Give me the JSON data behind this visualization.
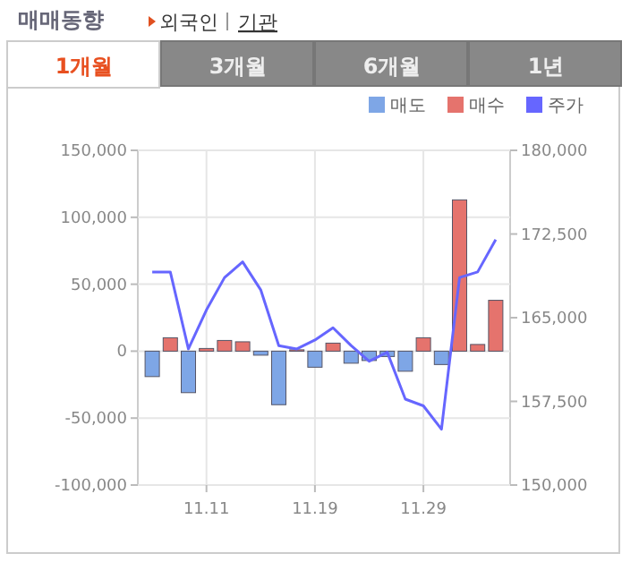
{
  "chart_data": {
    "type": "bar",
    "title": "매매동향",
    "annotations": [
      "외국인",
      "기관",
      "1개월",
      "3개월",
      "6개월",
      "1년"
    ],
    "categories": [
      null,
      null,
      null,
      "11.11",
      null,
      null,
      null,
      null,
      null,
      "11.19",
      null,
      null,
      null,
      null,
      null,
      "11.29",
      null,
      null,
      null,
      null
    ],
    "series": [
      {
        "name": "매도",
        "color": "#7ea6e6",
        "values": [
          -19000,
          0,
          -31000,
          0,
          0,
          0,
          -3000,
          -40000,
          0,
          -12000,
          0,
          -9000,
          -7000,
          -4000,
          -15000,
          0,
          -10000,
          0,
          0,
          0
        ]
      },
      {
        "name": "매수",
        "color": "#e5736d",
        "values": [
          0,
          10000,
          0,
          2000,
          8000,
          7000,
          0,
          0,
          1000,
          0,
          6000,
          0,
          0,
          0,
          0,
          10000,
          0,
          113000,
          5000,
          38000
        ]
      },
      {
        "name": "주가",
        "type": "line",
        "axis": "y2",
        "color": "#6666ff",
        "values": [
          169100,
          169100,
          162200,
          165700,
          168600,
          170000,
          167500,
          162500,
          162200,
          163000,
          164100,
          162500,
          161100,
          161900,
          157700,
          157100,
          155000,
          168600,
          169100,
          172000
        ]
      }
    ],
    "ylim": [
      -100000,
      150000
    ],
    "yticks": [
      {
        "value": -100000,
        "label": "-100,000"
      },
      {
        "value": -50000,
        "label": "-50,000"
      },
      {
        "value": 0,
        "label": "0"
      },
      {
        "value": 50000,
        "label": "50,000"
      },
      {
        "value": 100000,
        "label": "100,000"
      },
      {
        "value": 150000,
        "label": "150,000"
      }
    ],
    "y2lim": [
      150000,
      180000
    ],
    "y2ticks": [
      {
        "value": 150000,
        "label": "150,000"
      },
      {
        "value": 157500,
        "label": "157,500"
      },
      {
        "value": 165000,
        "label": "165,000"
      },
      {
        "value": 172500,
        "label": "172,500"
      },
      {
        "value": 180000,
        "label": "180,000"
      }
    ],
    "grid": true,
    "legend": "top right"
  }
}
